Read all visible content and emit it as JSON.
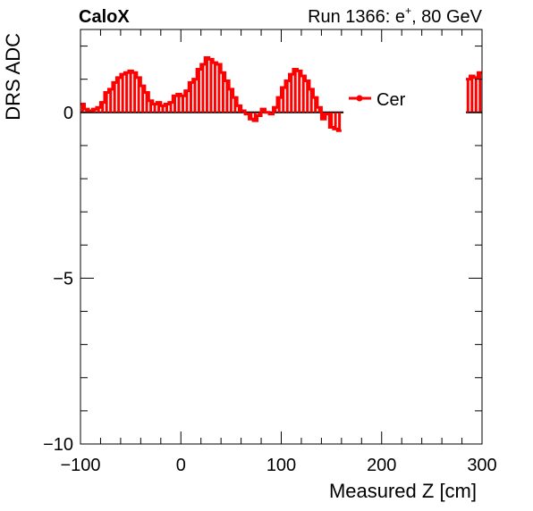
{
  "header": {
    "left_label": "CaloX",
    "right_label_main": "Run 1366: e",
    "right_label_sup": "+",
    "right_label_tail": ", 80 GeV"
  },
  "chart_data": {
    "type": "line",
    "xlabel": "Measured Z [cm]",
    "ylabel": "DRS ADC",
    "xlim": [
      -100,
      300
    ],
    "ylim": [
      -10,
      2.5
    ],
    "x_ticks": [
      -100,
      0,
      100,
      200,
      300
    ],
    "x_tick_labels": [
      "−100",
      "0",
      "100",
      "200",
      "300"
    ],
    "y_ticks": [
      -10,
      -5,
      0
    ],
    "y_tick_labels": [
      "−10",
      "−5",
      "0"
    ],
    "grid": false,
    "legend": {
      "position": "top-right",
      "entries": [
        "Cer"
      ]
    },
    "series": [
      {
        "name": "Cer",
        "color": "#ff0000",
        "style": "histogram-drop-lines",
        "bin_width": 4,
        "values": [
          {
            "x": -98,
            "y": 0.25
          },
          {
            "x": -94,
            "y": 0.1
          },
          {
            "x": -90,
            "y": 0.05
          },
          {
            "x": -86,
            "y": 0.1
          },
          {
            "x": -82,
            "y": 0.15
          },
          {
            "x": -78,
            "y": 0.3
          },
          {
            "x": -74,
            "y": 0.6
          },
          {
            "x": -70,
            "y": 0.7
          },
          {
            "x": -66,
            "y": 0.9
          },
          {
            "x": -62,
            "y": 1.05
          },
          {
            "x": -58,
            "y": 1.15
          },
          {
            "x": -54,
            "y": 1.2
          },
          {
            "x": -50,
            "y": 1.25
          },
          {
            "x": -46,
            "y": 1.2
          },
          {
            "x": -42,
            "y": 1.05
          },
          {
            "x": -38,
            "y": 0.8
          },
          {
            "x": -34,
            "y": 0.6
          },
          {
            "x": -30,
            "y": 0.35
          },
          {
            "x": -26,
            "y": 0.25
          },
          {
            "x": -22,
            "y": 0.3
          },
          {
            "x": -18,
            "y": 0.2
          },
          {
            "x": -14,
            "y": 0.25
          },
          {
            "x": -10,
            "y": 0.3
          },
          {
            "x": -6,
            "y": 0.5
          },
          {
            "x": -2,
            "y": 0.55
          },
          {
            "x": 2,
            "y": 0.5
          },
          {
            "x": 6,
            "y": 0.65
          },
          {
            "x": 10,
            "y": 0.9
          },
          {
            "x": 14,
            "y": 1.0
          },
          {
            "x": 18,
            "y": 1.3
          },
          {
            "x": 22,
            "y": 1.45
          },
          {
            "x": 26,
            "y": 1.65
          },
          {
            "x": 30,
            "y": 1.6
          },
          {
            "x": 34,
            "y": 1.5
          },
          {
            "x": 38,
            "y": 1.45
          },
          {
            "x": 42,
            "y": 1.2
          },
          {
            "x": 46,
            "y": 0.95
          },
          {
            "x": 50,
            "y": 0.7
          },
          {
            "x": 54,
            "y": 0.45
          },
          {
            "x": 58,
            "y": 0.2
          },
          {
            "x": 62,
            "y": 0.05
          },
          {
            "x": 66,
            "y": -0.05
          },
          {
            "x": 70,
            "y": -0.2
          },
          {
            "x": 74,
            "y": -0.25
          },
          {
            "x": 78,
            "y": -0.1
          },
          {
            "x": 82,
            "y": 0.1
          },
          {
            "x": 86,
            "y": 0.0
          },
          {
            "x": 90,
            "y": -0.05
          },
          {
            "x": 94,
            "y": 0.15
          },
          {
            "x": 98,
            "y": 0.45
          },
          {
            "x": 102,
            "y": 0.75
          },
          {
            "x": 106,
            "y": 0.95
          },
          {
            "x": 110,
            "y": 1.15
          },
          {
            "x": 114,
            "y": 1.3
          },
          {
            "x": 118,
            "y": 1.25
          },
          {
            "x": 122,
            "y": 1.1
          },
          {
            "x": 126,
            "y": 0.95
          },
          {
            "x": 130,
            "y": 0.7
          },
          {
            "x": 134,
            "y": 0.45
          },
          {
            "x": 138,
            "y": 0.15
          },
          {
            "x": 142,
            "y": -0.2
          },
          {
            "x": 146,
            "y": -0.05
          },
          {
            "x": 150,
            "y": -0.45
          },
          {
            "x": 154,
            "y": -0.5
          },
          {
            "x": 158,
            "y": -0.55
          },
          {
            "x": 286,
            "y": 1.0
          },
          {
            "x": 290,
            "y": 1.1
          },
          {
            "x": 294,
            "y": 1.05
          },
          {
            "x": 298,
            "y": 1.2
          }
        ]
      }
    ]
  }
}
